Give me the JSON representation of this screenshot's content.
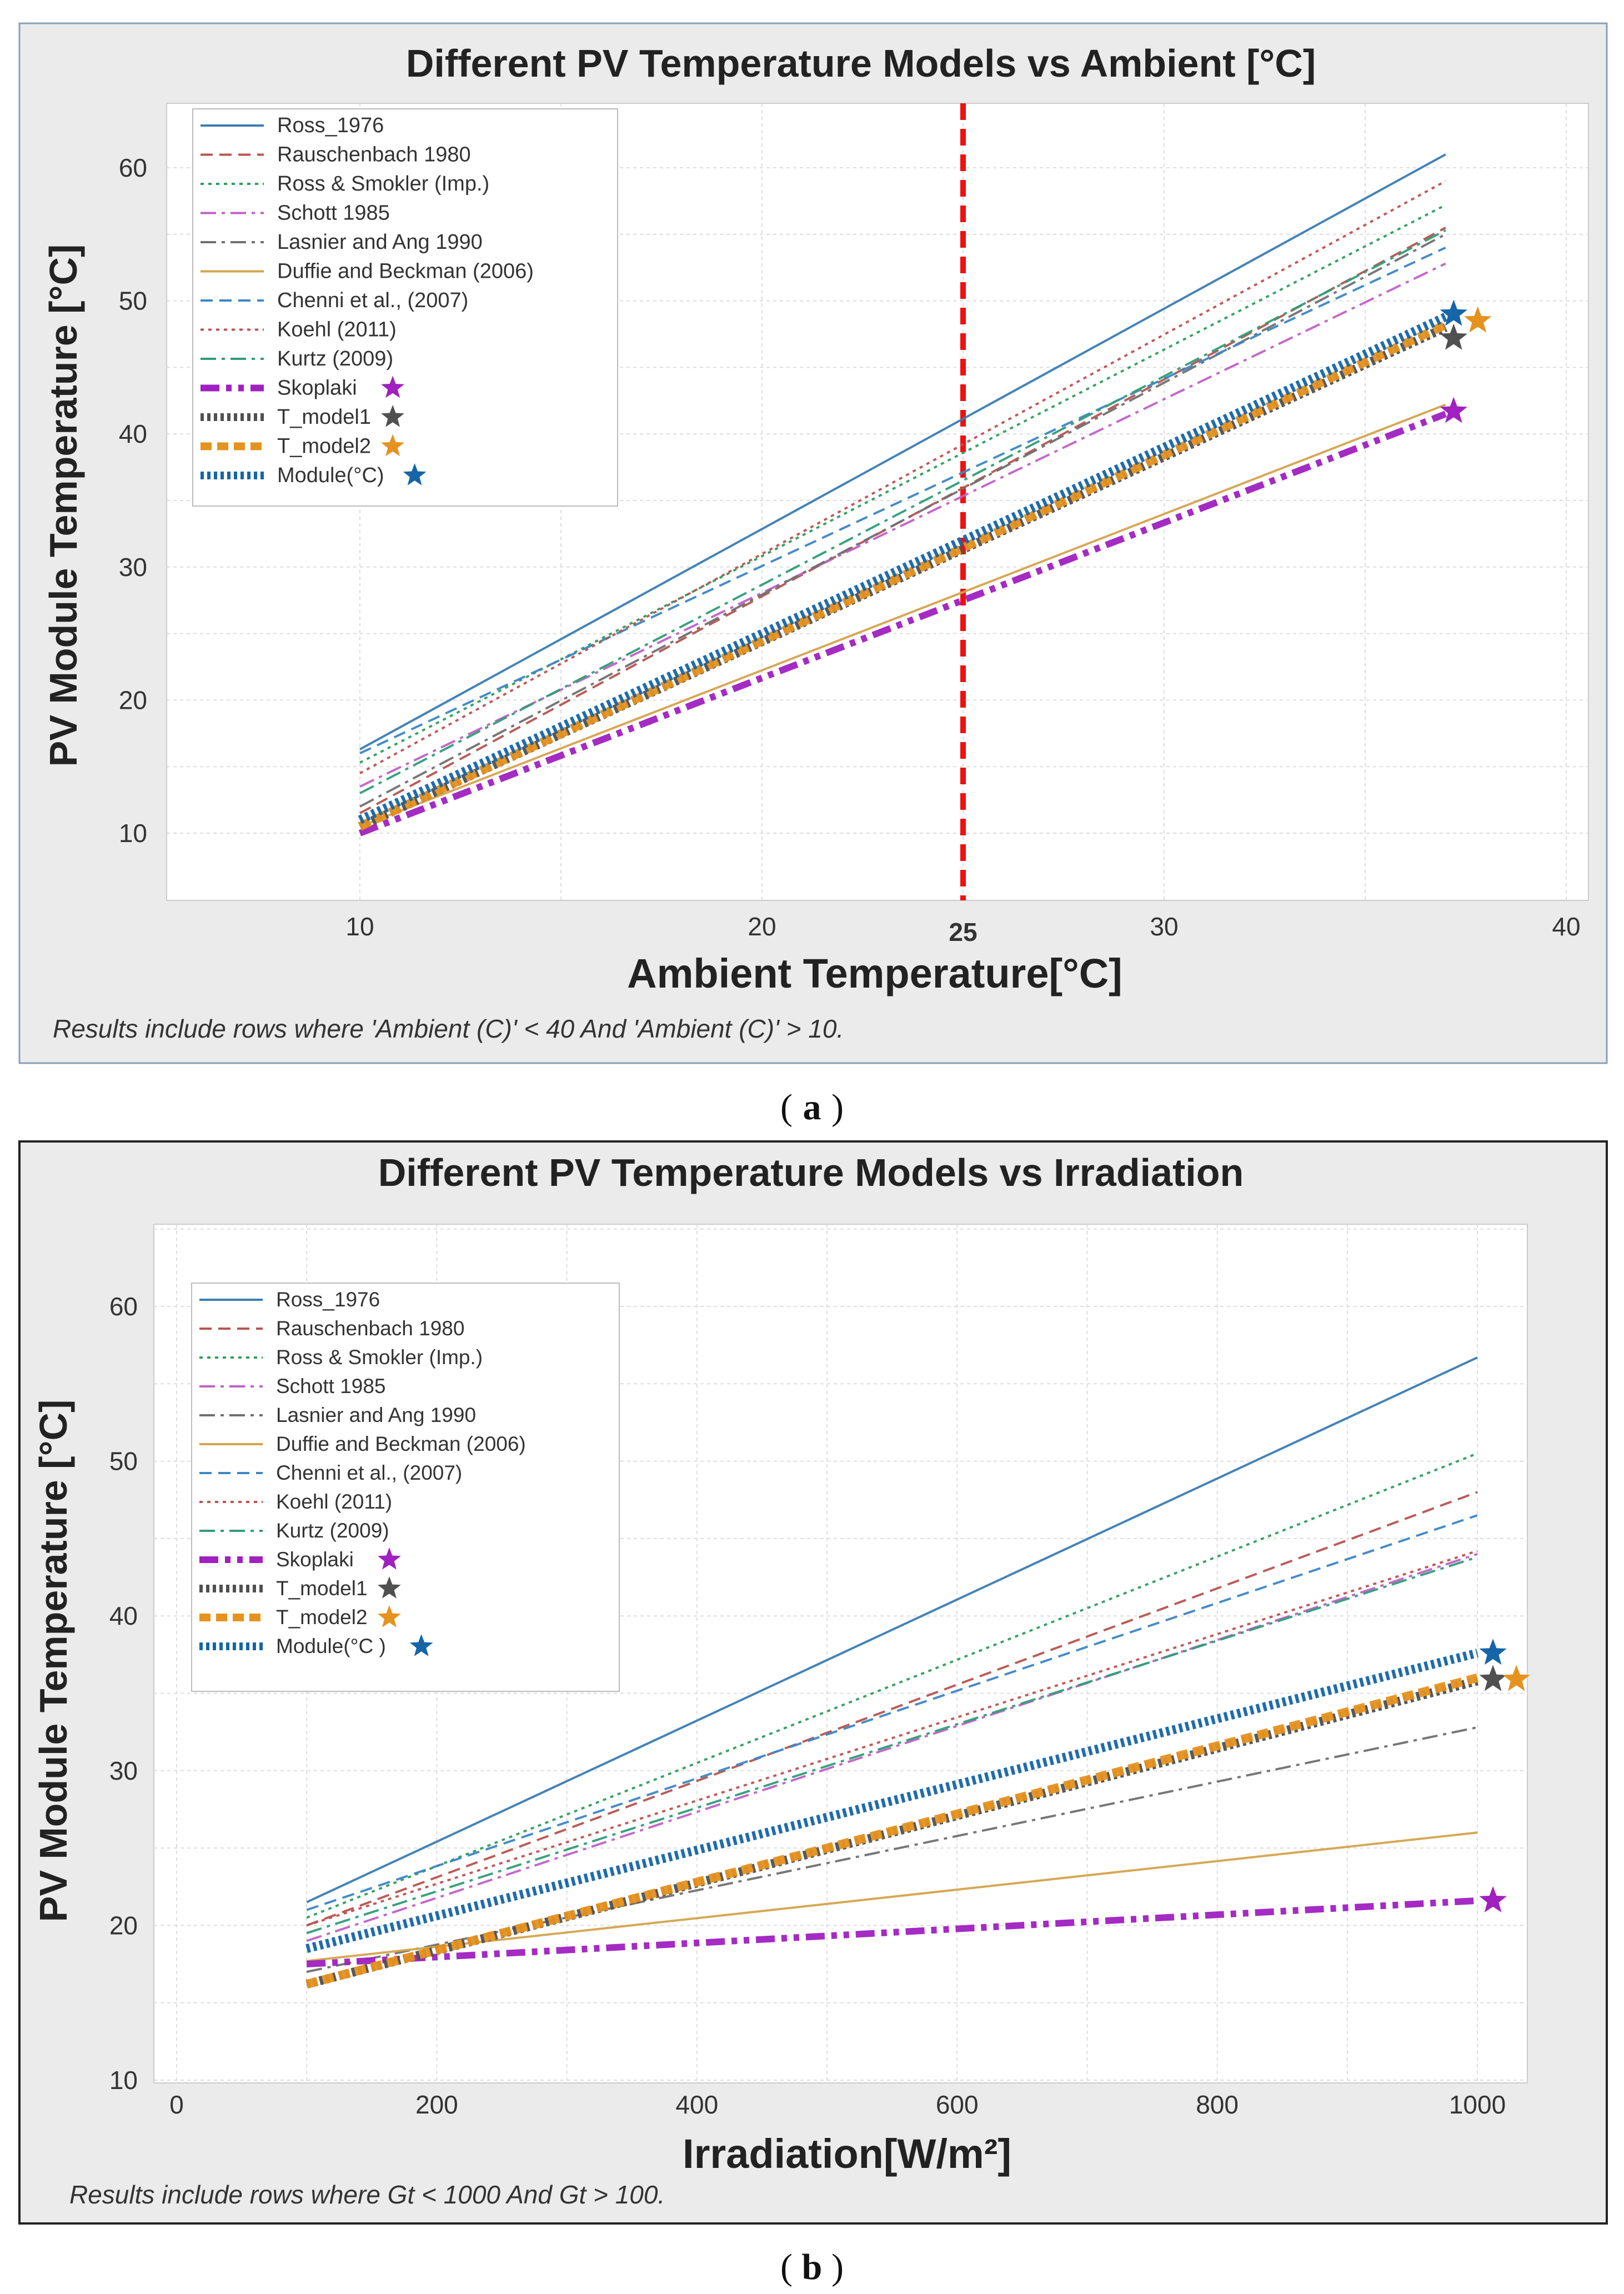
{
  "colors": {
    "Ross_1976": "#3b7db3",
    "Rauschenbach 1980": "#b85450",
    "Ross & Smokler (Imp.)": "#2e9e5b",
    "Schott 1985": "#c060c8",
    "Lasnier and Ang 1990": "#707070",
    "Duffie and Beckman (2006)": "#d4a44c",
    "Chenni et al., (2007)": "#3d86c6",
    "Koehl (2011)": "#c05050",
    "Kurtz (2009)": "#2f9e78",
    "Skoplaki": "#a020c0",
    "T_model1": "#505050",
    "T_model2": "#e6921e",
    "Module(°C)": "#1565a8",
    "vline": "#ee1111",
    "panel_bg": "#ebebeb",
    "plot_bg": "#ffffff"
  },
  "chart_data": [
    {
      "type": "line",
      "panel_label": "a",
      "title": "Different PV Temperature Models vs Ambient  [°C]",
      "xlabel": "Ambient Temperature[°C]",
      "ylabel": "PV Module Temperature [°C]",
      "footnote": "Results include rows where 'Ambient (C)' < 40  And  'Ambient (C)' > 10.",
      "xlim": [
        6,
        40.5
      ],
      "ylim": [
        5,
        65
      ],
      "xticks": [
        10,
        20,
        30,
        40
      ],
      "yticks": [
        10,
        20,
        30,
        40,
        50,
        60
      ],
      "grid": true,
      "vline": {
        "x": 25,
        "label": "25"
      },
      "legend_position": "top-left",
      "series": [
        {
          "name": "Ross_1976",
          "x": [
            10,
            37
          ],
          "values": [
            16.3,
            61.0
          ],
          "style": "solid"
        },
        {
          "name": "Rauschenbach 1980",
          "x": [
            10,
            37
          ],
          "values": [
            11.5,
            55.5
          ],
          "style": "dashed"
        },
        {
          "name": "Ross & Smokler (Imp.)",
          "x": [
            10,
            37
          ],
          "values": [
            15.3,
            57.2
          ],
          "style": "dotted"
        },
        {
          "name": "Schott 1985",
          "x": [
            10,
            37
          ],
          "values": [
            13.5,
            52.8
          ],
          "style": "dashdot"
        },
        {
          "name": "Lasnier and Ang 1990",
          "x": [
            10,
            37
          ],
          "values": [
            12.0,
            55.0
          ],
          "style": "dashdot"
        },
        {
          "name": "Duffie and Beckman (2006)",
          "x": [
            10,
            37
          ],
          "values": [
            10.5,
            42.2
          ],
          "style": "solid"
        },
        {
          "name": "Chenni et al., (2007)",
          "x": [
            10,
            37
          ],
          "values": [
            16.0,
            54.0
          ],
          "style": "dashed"
        },
        {
          "name": "Koehl (2011)",
          "x": [
            10,
            37
          ],
          "values": [
            14.5,
            59.0
          ],
          "style": "dotted"
        },
        {
          "name": "Kurtz (2009)",
          "x": [
            10,
            37
          ],
          "values": [
            13.0,
            55.3
          ],
          "style": "dashdot"
        },
        {
          "name": "Skoplaki",
          "x": [
            10,
            37
          ],
          "values": [
            10.0,
            41.5
          ],
          "style": "dashdotbold",
          "star": [
            37.2,
            41.7
          ]
        },
        {
          "name": "T_model1",
          "x": [
            10,
            37
          ],
          "values": [
            10.5,
            48.0
          ],
          "style": "thickdotted",
          "star": [
            37.2,
            47.2
          ]
        },
        {
          "name": "T_model2",
          "x": [
            10,
            37
          ],
          "values": [
            10.5,
            48.2
          ],
          "style": "thickdashed",
          "star": [
            37.8,
            48.5
          ]
        },
        {
          "name": "Module(°C)",
          "x": [
            10,
            37
          ],
          "values": [
            11.0,
            48.8
          ],
          "style": "thickdotted",
          "star": [
            37.2,
            49.0
          ]
        }
      ]
    },
    {
      "type": "line",
      "panel_label": "b",
      "title": "Different PV Temperature Models vs Irradiation",
      "xlabel": "Irradiation[W/m²]",
      "ylabel": "PV Module Temperature [°C]",
      "footnote": "Results include rows where Gt < 1000 And  Gt > 100.",
      "xlim": [
        -20,
        1060
      ],
      "ylim": [
        10,
        65
      ],
      "xticks": [
        0,
        200,
        400,
        600,
        800,
        1000
      ],
      "yticks": [
        10,
        20,
        30,
        40,
        50,
        60
      ],
      "grid": true,
      "legend_position": "top-left",
      "series": [
        {
          "name": "Ross_1976",
          "x": [
            100,
            1000
          ],
          "values": [
            21.5,
            56.7
          ],
          "style": "solid"
        },
        {
          "name": "Rauschenbach 1980",
          "x": [
            100,
            1000
          ],
          "values": [
            20.0,
            48.0
          ],
          "style": "dashed"
        },
        {
          "name": "Ross & Smokler (Imp.)",
          "x": [
            100,
            1000
          ],
          "values": [
            20.5,
            50.5
          ],
          "style": "dotted"
        },
        {
          "name": "Schott 1985",
          "x": [
            100,
            1000
          ],
          "values": [
            19.0,
            44.0
          ],
          "style": "dashdot"
        },
        {
          "name": "Lasnier and Ang 1990",
          "x": [
            100,
            1000
          ],
          "values": [
            17.0,
            32.8
          ],
          "style": "dashdot"
        },
        {
          "name": "Duffie and Beckman (2006)",
          "x": [
            100,
            1000
          ],
          "values": [
            17.7,
            26.0
          ],
          "style": "solid"
        },
        {
          "name": "Chenni et al., (2007)",
          "x": [
            100,
            1000
          ],
          "values": [
            21.0,
            46.5
          ],
          "style": "dashed"
        },
        {
          "name": "Koehl (2011)",
          "x": [
            100,
            1000
          ],
          "values": [
            20.0,
            44.2
          ],
          "style": "dotted"
        },
        {
          "name": "Kurtz (2009)",
          "x": [
            100,
            1000
          ],
          "values": [
            19.5,
            43.8
          ],
          "style": "dashdot"
        },
        {
          "name": "Skoplaki",
          "x": [
            100,
            1000
          ],
          "values": [
            17.5,
            21.6
          ],
          "style": "dashdotbold",
          "star": [
            1012,
            21.6
          ]
        },
        {
          "name": "T_model1",
          "x": [
            100,
            1000
          ],
          "values": [
            16.2,
            35.8
          ],
          "style": "thickdotted",
          "star": [
            1012,
            35.9
          ]
        },
        {
          "name": "T_model2",
          "x": [
            100,
            1000
          ],
          "values": [
            16.2,
            36.0
          ],
          "style": "thickdashed",
          "star": [
            1030,
            35.9
          ]
        },
        {
          "name": "Module(°C )",
          "x": [
            100,
            1000
          ],
          "values": [
            18.5,
            37.6
          ],
          "style": "thickdotted",
          "star": [
            1012,
            37.6
          ]
        }
      ]
    }
  ]
}
